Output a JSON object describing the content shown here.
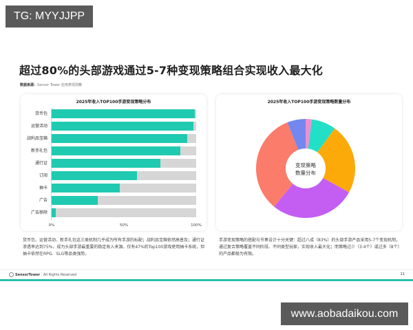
{
  "watermarks": {
    "top": "TG: MYYJJPP",
    "bottom": "www.aobadaikou.com"
  },
  "page": {
    "title": "超过80%的头部游戏通过5-7种变现策略组合实现收入最大化",
    "source_label": "数据来源：",
    "source_value": "Sensor Tower 应用表现洞察",
    "footer_brand": "SensorTower",
    "footer_text": " · All Rights Reserved",
    "page_number": "11"
  },
  "descriptions": {
    "left": "货币包、运营活动、新手礼包这三类机制几乎成为所有手游的标配；战利品宝箱依然高普及；通行证渗透率达到75%，成为头部手游最重要的稳定收入来源。仅有47%的Top100游戏使用抽卡系统，但抽卡依然在RPG、SLG等品类强势。",
    "right": "手游变现策略的搭配与节奏设计十分关键：超过八成（83%）的头部手游产品采用5-7个变现机制，通过复合策略覆盖不同阶段、不同类型玩家，实现收入最大化；而策略过少（3-4个）或过多（8个）的产品都极为有限。"
  },
  "chart_data": [
    {
      "type": "bar",
      "orientation": "horizontal",
      "title": "2025年收入TOP100手游变现策略分布",
      "categories": [
        "货币包",
        "运营活动",
        "战利品宝箱",
        "新手礼包",
        "通行证",
        "订阅",
        "抽卡",
        "广告",
        "广告移除"
      ],
      "values": [
        99,
        98,
        94,
        89,
        75,
        59,
        47,
        32,
        3
      ],
      "unit": "%",
      "xlim": [
        0,
        100
      ],
      "x_ticks": [
        "0%",
        "50%",
        "100%"
      ],
      "colors": {
        "fill": "#1fcab1",
        "track": "#d6d6d6"
      },
      "xlabel": "",
      "ylabel": "",
      "grid": false,
      "legend": "none"
    },
    {
      "type": "pie",
      "variant": "donut",
      "title": "2025年收入TOP100手游变现策略数量分布",
      "center_label": [
        "变现策略",
        "数量分布"
      ],
      "slices": [
        {
          "value": 2,
          "color": "#f08fd0"
        },
        {
          "value": 8,
          "color": "#22e0c8"
        },
        {
          "value": 23,
          "color": "#fbaa0a"
        },
        {
          "value": 28,
          "color": "#c45ef2"
        },
        {
          "value": 33,
          "color": "#fb7c6a"
        },
        {
          "value": 6,
          "color": "#7487ee"
        }
      ],
      "start_angle_deg": 0,
      "direction": "clockwise",
      "legend": "none",
      "labels_visible": false
    }
  ]
}
